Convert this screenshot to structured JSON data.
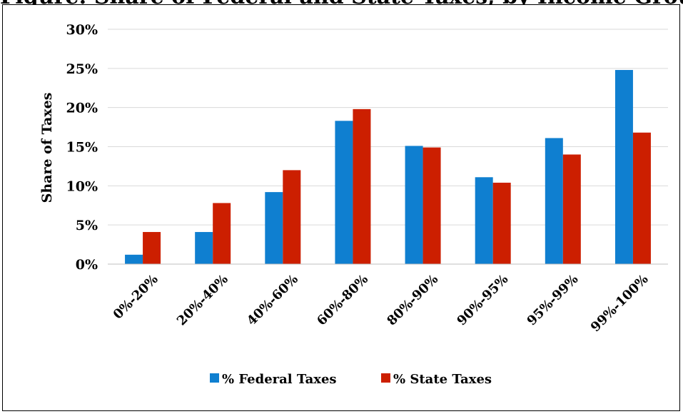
{
  "title": "Figure: Share of Federal and State Taxes, by Income Group (%)",
  "chart_data": {
    "type": "bar",
    "title": "",
    "xlabel": "",
    "ylabel": "Share of Taxes",
    "ylim": [
      0,
      30
    ],
    "yticks": [
      "0%",
      "5%",
      "10%",
      "15%",
      "20%",
      "25%",
      "30%"
    ],
    "grid": true,
    "legend_position": "bottom",
    "categories": [
      "0%-20%",
      "20%-40%",
      "40%-60%",
      "60%-80%",
      "80%-90%",
      "90%-95%",
      "95%-99%",
      "99%-100%"
    ],
    "series": [
      {
        "name": "% Federal Taxes",
        "color": "#0f7fd0",
        "values": [
          1.2,
          4.1,
          9.2,
          18.3,
          15.1,
          11.1,
          16.1,
          24.8
        ]
      },
      {
        "name": "% State Taxes",
        "color": "#cc1f00",
        "values": [
          4.1,
          7.8,
          12.0,
          19.8,
          14.9,
          10.4,
          14.0,
          16.8
        ]
      }
    ]
  }
}
